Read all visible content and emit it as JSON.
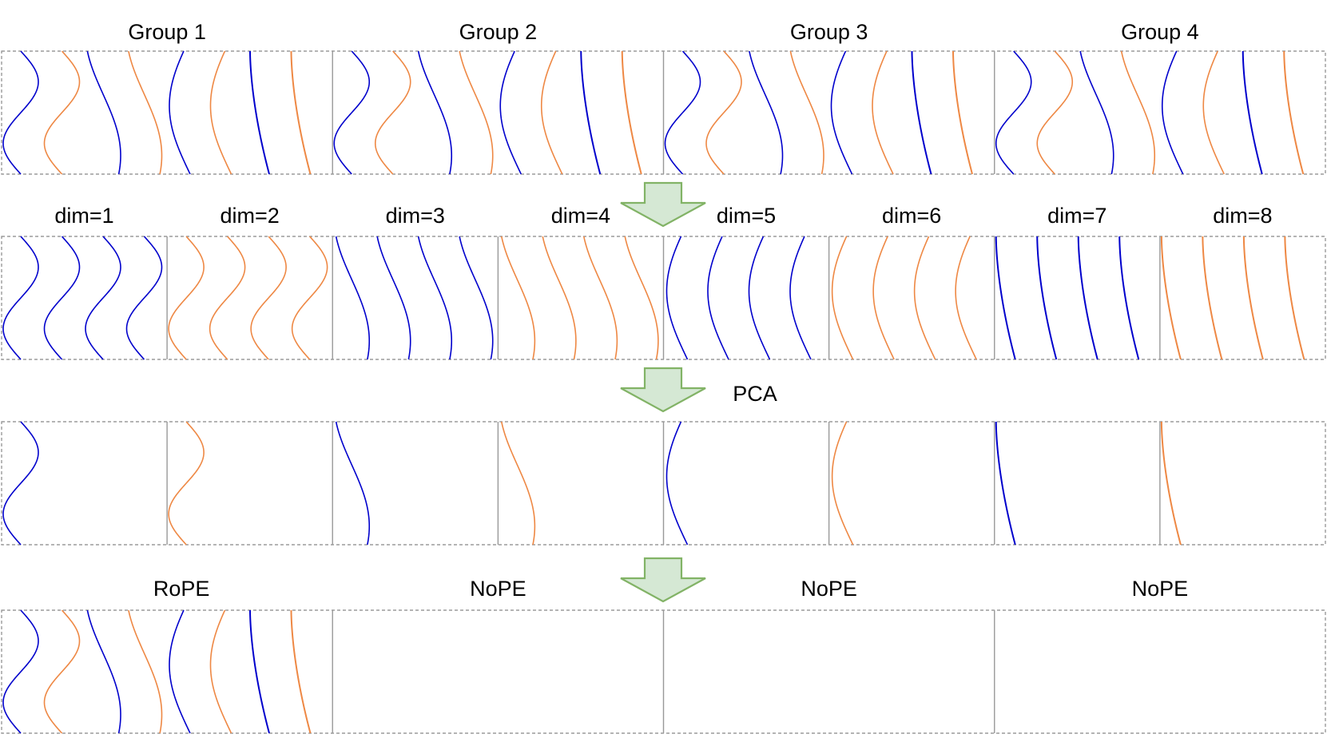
{
  "colors": {
    "blue": "#0000CC",
    "orange": "#EE8844",
    "arrow_fill": "#D5E8D4",
    "arrow_stroke": "#82B366",
    "frame": "#888888",
    "divider": "#999999"
  },
  "rows": [
    {
      "id": "groups",
      "labels": [
        "Group 1",
        "Group 2",
        "Group 3",
        "Group 4"
      ],
      "cells": 4,
      "pattern": "group"
    },
    {
      "id": "dims",
      "labels": [
        "dim=1",
        "dim=2",
        "dim=3",
        "dim=4",
        "dim=5",
        "dim=6",
        "dim=7",
        "dim=8"
      ],
      "cells": 8,
      "pattern": "dims"
    },
    {
      "id": "pca",
      "labels": [],
      "cells": 8,
      "pattern": "pca"
    },
    {
      "id": "pe",
      "labels": [
        "RoPE",
        "NoPE",
        "NoPE",
        "NoPE"
      ],
      "cells": 4,
      "pattern": "rope"
    }
  ],
  "arrows": [
    {
      "label": ""
    },
    {
      "label": "PCA"
    },
    {
      "label": ""
    }
  ]
}
